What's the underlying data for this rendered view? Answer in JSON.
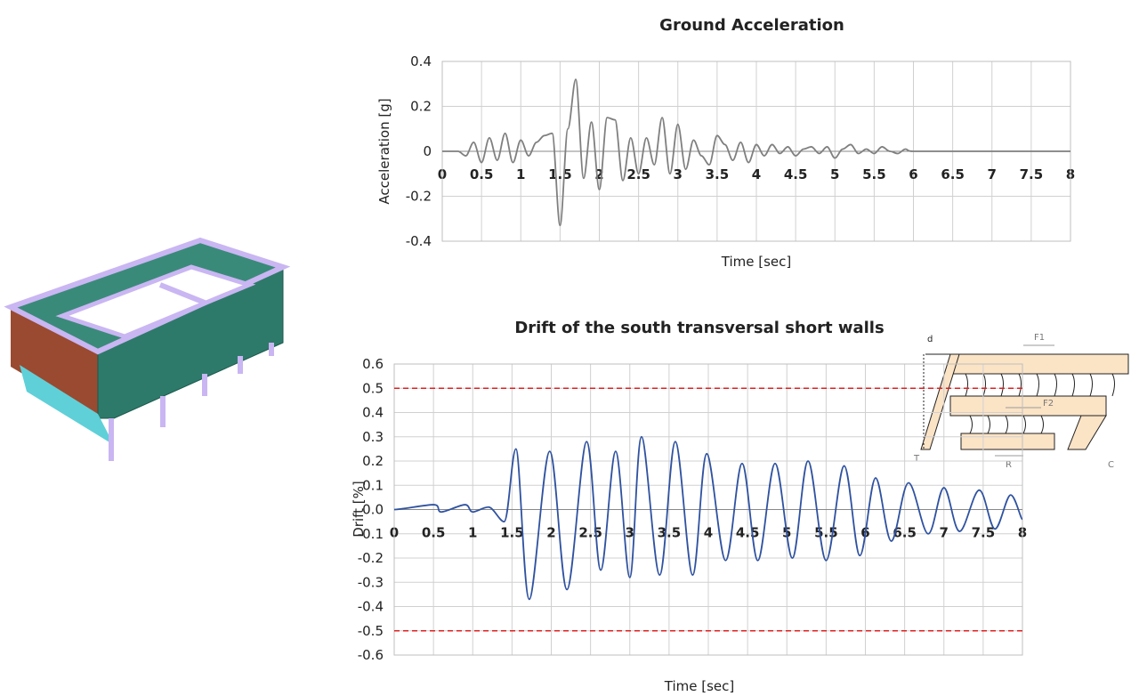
{
  "chart_data": [
    {
      "type": "line",
      "title": "Ground Acceleration",
      "x_label": "Time [sec]",
      "y_label": "Acceleration [g]",
      "xlim": [
        0,
        8
      ],
      "ylim": [
        -0.4,
        0.4
      ],
      "xticks": [
        0,
        0.5,
        1,
        1.5,
        2,
        2.5,
        3,
        3.5,
        4,
        4.5,
        5,
        5.5,
        6,
        6.5,
        7,
        7.5,
        8
      ],
      "yticks": [
        -0.4,
        -0.2,
        0,
        0.2,
        0.4
      ],
      "grid": true,
      "x": [
        0,
        0.1,
        0.2,
        0.3,
        0.4,
        0.5,
        0.6,
        0.7,
        0.8,
        0.9,
        1,
        1.1,
        1.2,
        1.3,
        1.4,
        1.5,
        1.6,
        1.7,
        1.8,
        1.9,
        2,
        2.1,
        2.2,
        2.3,
        2.4,
        2.5,
        2.6,
        2.7,
        2.8,
        2.9,
        3,
        3.1,
        3.2,
        3.3,
        3.4,
        3.5,
        3.6,
        3.7,
        3.8,
        3.9,
        4,
        4.1,
        4.2,
        4.3,
        4.4,
        4.5,
        4.6,
        4.7,
        4.8,
        4.9,
        5,
        5.1,
        5.2,
        5.3,
        5.4,
        5.5,
        5.6,
        5.7,
        5.8,
        5.9,
        6,
        6.5,
        7,
        7.5,
        8
      ],
      "series": [
        {
          "color": "#7f7f7f",
          "values": [
            0,
            0,
            0,
            -0.02,
            0.04,
            -0.05,
            0.06,
            -0.04,
            0.08,
            -0.05,
            0.05,
            -0.02,
            0.04,
            0.07,
            0.08,
            -0.33,
            0.1,
            0.32,
            -0.12,
            0.13,
            -0.17,
            0.15,
            0.14,
            -0.13,
            0.06,
            -0.1,
            0.06,
            -0.06,
            0.15,
            -0.1,
            0.12,
            -0.08,
            0.05,
            -0.02,
            -0.06,
            0.07,
            0.03,
            -0.04,
            0.04,
            -0.05,
            0.03,
            -0.02,
            0.03,
            -0.01,
            0.02,
            -0.02,
            0.01,
            0.02,
            -0.01,
            0.02,
            -0.03,
            0.01,
            0.03,
            -0.01,
            0.01,
            -0.01,
            0.02,
            0,
            -0.01,
            0.01,
            0,
            0,
            0,
            0,
            0
          ]
        }
      ]
    },
    {
      "type": "line",
      "title": "Drift of the south transversal short walls",
      "x_label": "Time [sec]",
      "y_label": "Drift [%]",
      "xlim": [
        0,
        8
      ],
      "ylim": [
        -0.6,
        0.6
      ],
      "xticks": [
        0,
        0.5,
        1,
        1.5,
        2,
        2.5,
        3,
        3.5,
        4,
        4.5,
        5,
        5.5,
        6,
        6.5,
        7,
        7.5,
        8
      ],
      "yticks": [
        -0.6,
        -0.5,
        -0.4,
        -0.3,
        -0.2,
        -0.1,
        {
          "value": 0,
          "label": "0.0"
        },
        0.1,
        0.2,
        0.3,
        0.4,
        0.5,
        0.6
      ],
      "grid": true,
      "reference_lines": [
        {
          "value": 0.5,
          "color": "#e02020"
        },
        {
          "value": -0.5,
          "color": "#e02020"
        }
      ],
      "x": [
        0,
        0.5,
        0.6,
        0.9,
        1,
        1.2,
        1.4,
        1.55,
        1.72,
        1.98,
        2.2,
        2.45,
        2.63,
        2.82,
        3,
        3.15,
        3.38,
        3.58,
        3.8,
        3.98,
        4.22,
        4.43,
        4.63,
        4.85,
        5.07,
        5.27,
        5.5,
        5.73,
        5.93,
        6.13,
        6.33,
        6.55,
        6.8,
        7,
        7.2,
        7.45,
        7.65,
        7.85,
        8
      ],
      "series": [
        {
          "color": "#2f52a0",
          "values": [
            0,
            0.02,
            -0.01,
            0.02,
            -0.01,
            0.01,
            -0.05,
            0.25,
            -0.37,
            0.24,
            -0.33,
            0.28,
            -0.25,
            0.24,
            -0.28,
            0.3,
            -0.27,
            0.28,
            -0.27,
            0.23,
            -0.21,
            0.19,
            -0.21,
            0.19,
            -0.2,
            0.2,
            -0.21,
            0.18,
            -0.19,
            0.13,
            -0.13,
            0.11,
            -0.1,
            0.09,
            -0.09,
            0.08,
            -0.08,
            0.06,
            -0.04
          ]
        }
      ]
    }
  ],
  "diagram": {
    "labels": [
      "d",
      "F1",
      "F2",
      "T",
      "R",
      "C"
    ]
  }
}
